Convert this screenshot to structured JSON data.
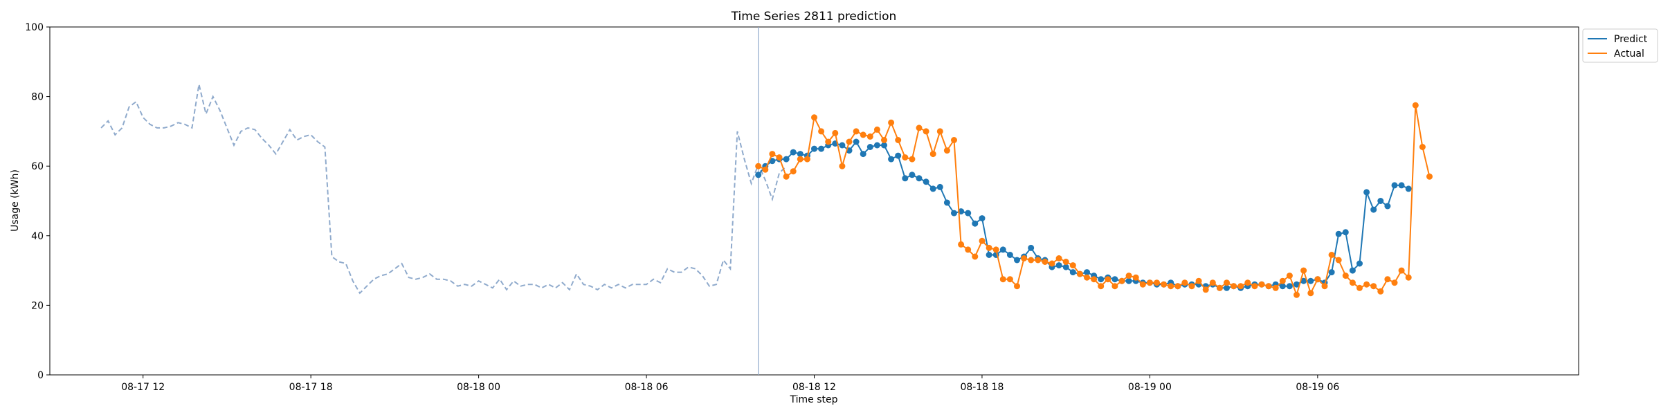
{
  "chart_data": {
    "type": "line",
    "title": "Time Series 2811 prediction",
    "xlabel": "Time step",
    "ylabel": "Usage (kWh)",
    "ylim": [
      0,
      100
    ],
    "yticks": [
      0,
      20,
      40,
      60,
      80,
      100
    ],
    "xlim": [
      "08-17 08:40",
      "08-19 15:20"
    ],
    "xticks": [
      {
        "value": "08-17 12:00",
        "label": "08-17 12"
      },
      {
        "value": "08-17 18:00",
        "label": "08-17 18"
      },
      {
        "value": "08-18 00:00",
        "label": "08-18 00"
      },
      {
        "value": "08-18 06:00",
        "label": "08-18 06"
      },
      {
        "value": "08-18 12:00",
        "label": "08-18 12"
      },
      {
        "value": "08-18 18:00",
        "label": "08-18 18"
      },
      {
        "value": "08-19 00:00",
        "label": "08-19 00"
      },
      {
        "value": "08-19 06:00",
        "label": "08-19 06"
      }
    ],
    "history_start": "08-17 10:30",
    "forecast_start": "08-18 10:00",
    "interval_minutes": 15,
    "grid": false,
    "legend": "top-right outside",
    "colors": {
      "history": "#8faacc",
      "predict": "#1f77b4",
      "actual": "#ff7f0e",
      "divider": "#8faacc"
    },
    "history": [
      71,
      73,
      69,
      71,
      77,
      78.5,
      74,
      72,
      71,
      71,
      71.5,
      72.5,
      72,
      71,
      83.5,
      75,
      80,
      76,
      71,
      66,
      70,
      71,
      70.5,
      68,
      66,
      63.5,
      67,
      70.5,
      67.5,
      68.5,
      69,
      67,
      65.5,
      34,
      32.5,
      32,
      27,
      23.5,
      25.5,
      27.5,
      28.5,
      29,
      30.5,
      32,
      28,
      27.5,
      28,
      29,
      27.5,
      27.5,
      27,
      25.5,
      26,
      25.5,
      27,
      26,
      25,
      27.5,
      24.5,
      27,
      25.5,
      26,
      26,
      25,
      26,
      25,
      26.5,
      24.5,
      29,
      26,
      25.5,
      24.5,
      26,
      25,
      26,
      25,
      26,
      26,
      26,
      27.5,
      26.5,
      30.5,
      29.5,
      29.5,
      31,
      30.5,
      28.5,
      25.5,
      26,
      33,
      30.5,
      70,
      62,
      55,
      60.5,
      56,
      50.5,
      58,
      60
    ],
    "series": [
      {
        "name": "Predict",
        "values": [
          57.5,
          60,
          61.5,
          62,
          62,
          64,
          63.5,
          63,
          65,
          65,
          66,
          66.5,
          66,
          64.5,
          67,
          63.5,
          65.5,
          66,
          66,
          62,
          63,
          56.5,
          57.5,
          56.5,
          55.5,
          53.5,
          54,
          49.5,
          46.5,
          47,
          46.5,
          43.5,
          45,
          34.5,
          34.5,
          36,
          34.5,
          33,
          34,
          36.5,
          33.5,
          33,
          31,
          31.5,
          31,
          29.5,
          29,
          29.5,
          28.5,
          27.5,
          28,
          27.5,
          27,
          27,
          27,
          26.5,
          26.5,
          26,
          26,
          26.5,
          25.5,
          26,
          26,
          26,
          25.5,
          26,
          25,
          25,
          25.5,
          25,
          25.5,
          26,
          26,
          25.5,
          26,
          25.5,
          25.5,
          26,
          27,
          27,
          27.5,
          26.5,
          29.5,
          40.5,
          41,
          30,
          32,
          52.5,
          47.5,
          50,
          48.5,
          54.5,
          54.5,
          53.5
        ]
      },
      {
        "name": "Actual",
        "values": [
          60,
          59,
          63.5,
          62.5,
          57,
          58.5,
          62,
          62,
          74,
          70,
          67,
          69.5,
          60,
          67,
          70,
          69,
          68.5,
          70.5,
          67.5,
          72.5,
          67.5,
          62.5,
          62,
          71,
          70,
          63.5,
          70,
          64.5,
          67.5,
          37.5,
          36,
          34,
          38.5,
          36.5,
          36,
          27.5,
          27.5,
          25.5,
          33.5,
          33,
          33,
          32.5,
          32,
          33.5,
          32.5,
          31.5,
          29,
          28,
          27.5,
          25.5,
          27.5,
          25.5,
          27,
          28.5,
          28,
          26,
          26.5,
          26.5,
          26,
          25.5,
          25.5,
          26.5,
          25.5,
          27,
          24.5,
          26.5,
          25,
          26.5,
          25.5,
          25.5,
          26.5,
          25.5,
          26,
          25.5,
          25,
          27,
          28.5,
          23,
          30,
          23.5,
          27.5,
          25.5,
          34.5,
          33,
          28.5,
          26.5,
          25,
          26,
          25.5,
          24,
          27.5,
          26.5,
          30,
          28,
          77.5,
          65.5,
          57
        ]
      }
    ]
  }
}
